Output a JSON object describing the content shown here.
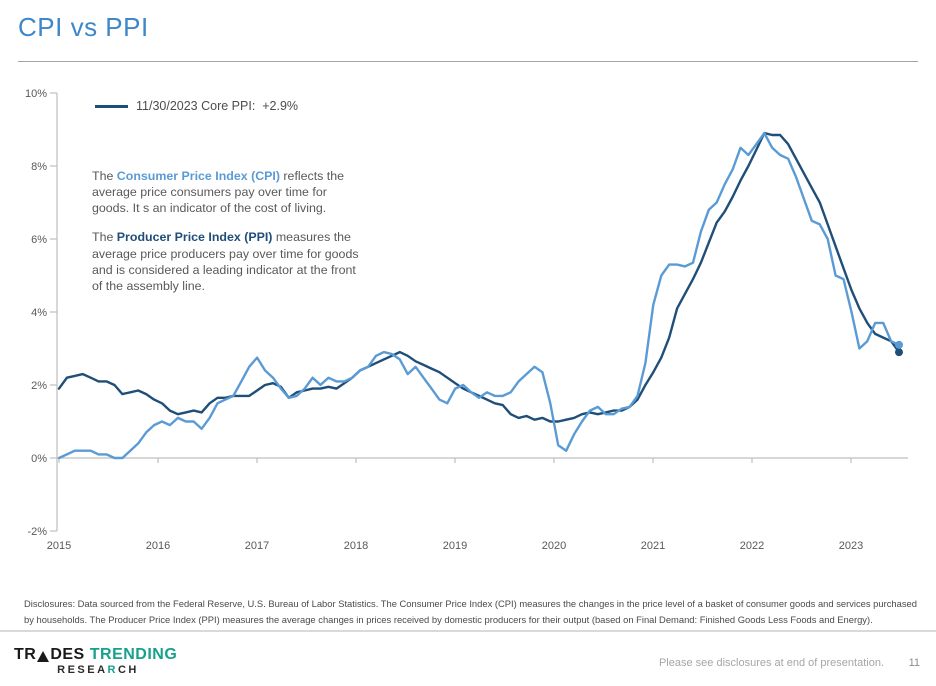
{
  "page": {
    "title": "CPI vs PPI",
    "page_number": "11",
    "footer_note": "Please see disclosures at end of presentation."
  },
  "annotation": {
    "para1": {
      "prefix": "The ",
      "term": "Consumer Price Index (CPI)",
      "rest": " reflects the average price consumers pay over time for goods. It s an indicator of the cost of living."
    },
    "para2": {
      "prefix": "The ",
      "term": "Producer Price Index (PPI)",
      "rest": " measures the average price producers pay over time for goods and is considered a leading indicator at the front of the assembly line."
    }
  },
  "disclosures": "Disclosures: Data sourced from the Federal Reserve, U.S. Bureau of Labor Statistics. The Consumer Price Index (CPI) measures the changes in the price level of a basket of consumer goods and services purchased by households. The Producer Price Index (PPI) measures the average changes in prices received by domestic producers for their output (based on Final Demand: Finished Goods Less Foods and Energy).",
  "logo": {
    "trades_left": "TR",
    "trades_right": "DES",
    "trending": "TRENDING",
    "research_a": "RESEA",
    "research_b": "R",
    "research_c": "CH",
    "teal_color": "#17A08C",
    "dark_color": "#1A1A1A"
  },
  "chart_data": {
    "type": "line",
    "title": "CPI vs PPI",
    "x_start": "2015-01",
    "x_end": "2023-11",
    "x_frequency": "monthly",
    "xtick_labels": [
      "2015",
      "2016",
      "2017",
      "2018",
      "2019",
      "2020",
      "2021",
      "2022",
      "2023"
    ],
    "ytick_labels": [
      "10%",
      "8%",
      "6%",
      "4%",
      "2%",
      "0%",
      "-2%"
    ],
    "ytick_values": [
      10,
      8,
      6,
      4,
      2,
      0,
      -2
    ],
    "ylim": [
      -2,
      10
    ],
    "grid": false,
    "legend_position": "top-left",
    "legend_label": "11/30/2023 Core PPI:  +2.9%",
    "axis_color": "#BFBFBF",
    "label_color": "#595959",
    "series": [
      {
        "name": "CPI",
        "color": "#5B9BD5",
        "end_marker": true,
        "values": [
          0.0,
          0.1,
          0.2,
          0.2,
          0.2,
          0.1,
          0.1,
          0.0,
          0.0,
          0.2,
          0.4,
          0.7,
          0.9,
          1.0,
          0.9,
          1.1,
          1.0,
          1.0,
          0.8,
          1.1,
          1.5,
          1.6,
          1.7,
          2.1,
          2.5,
          2.75,
          2.4,
          2.2,
          1.9,
          1.65,
          1.7,
          1.9,
          2.2,
          2.0,
          2.2,
          2.1,
          2.1,
          2.2,
          2.4,
          2.5,
          2.8,
          2.9,
          2.85,
          2.7,
          2.3,
          2.5,
          2.2,
          1.9,
          1.6,
          1.5,
          1.9,
          2.0,
          1.8,
          1.65,
          1.8,
          1.7,
          1.7,
          1.8,
          2.1,
          2.3,
          2.5,
          2.35,
          1.5,
          0.35,
          0.2,
          0.65,
          1.0,
          1.3,
          1.4,
          1.2,
          1.2,
          1.35,
          1.4,
          1.7,
          2.6,
          4.2,
          5.0,
          5.3,
          5.3,
          5.25,
          5.35,
          6.2,
          6.8,
          7.0,
          7.5,
          7.9,
          8.5,
          8.3,
          8.6,
          8.9,
          8.5,
          8.3,
          8.2,
          7.7,
          7.1,
          6.5,
          6.4,
          6.0,
          5.0,
          4.9,
          4.0,
          3.0,
          3.2,
          3.7,
          3.7,
          3.2,
          3.1
        ]
      },
      {
        "name": "Core PPI",
        "color": "#1F4E79",
        "end_marker": true,
        "values": [
          1.9,
          2.2,
          2.25,
          2.3,
          2.2,
          2.1,
          2.1,
          2.0,
          1.75,
          1.8,
          1.85,
          1.75,
          1.6,
          1.5,
          1.3,
          1.2,
          1.25,
          1.3,
          1.25,
          1.5,
          1.65,
          1.65,
          1.7,
          1.7,
          1.7,
          1.85,
          2.0,
          2.05,
          1.95,
          1.65,
          1.8,
          1.85,
          1.9,
          1.9,
          1.95,
          1.9,
          2.05,
          2.2,
          2.4,
          2.5,
          2.6,
          2.7,
          2.8,
          2.9,
          2.8,
          2.65,
          2.55,
          2.45,
          2.35,
          2.2,
          2.05,
          1.9,
          1.8,
          1.7,
          1.6,
          1.5,
          1.45,
          1.2,
          1.1,
          1.15,
          1.05,
          1.1,
          1.0,
          1.0,
          1.05,
          1.1,
          1.2,
          1.25,
          1.2,
          1.25,
          1.3,
          1.3,
          1.4,
          1.6,
          2.0,
          2.35,
          2.75,
          3.3,
          4.1,
          4.5,
          4.9,
          5.35,
          5.9,
          6.45,
          6.75,
          7.15,
          7.6,
          8.0,
          8.45,
          8.9,
          8.85,
          8.85,
          8.6,
          8.2,
          7.8,
          7.4,
          7.0,
          6.4,
          5.8,
          5.2,
          4.6,
          4.1,
          3.7,
          3.4,
          3.3,
          3.2,
          2.9
        ]
      }
    ]
  }
}
